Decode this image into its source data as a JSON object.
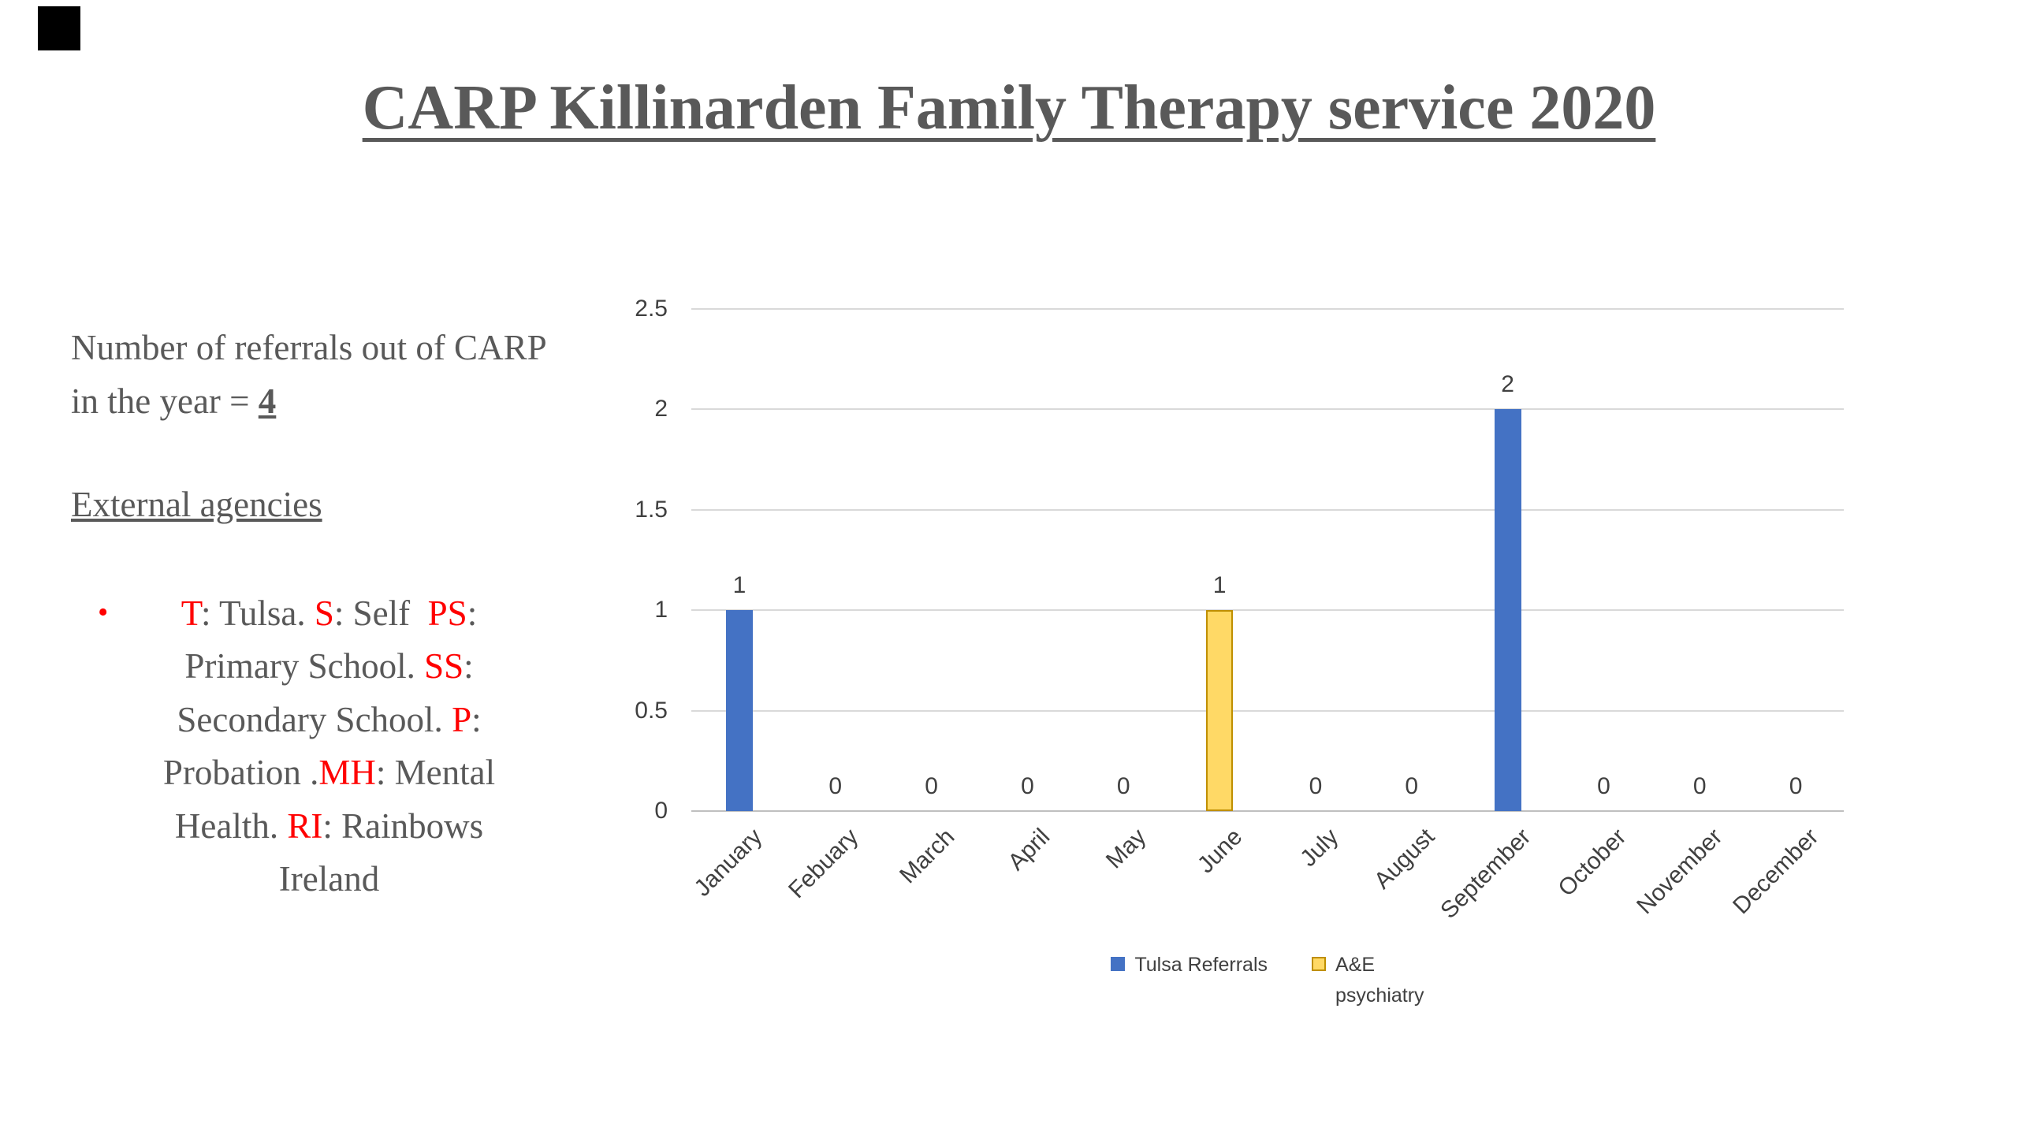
{
  "slide": {
    "title": "CARP Killinarden Family Therapy service 2020",
    "referrals": {
      "text_before_value": "Number of referrals out of CARP in the year = ",
      "value": "4"
    },
    "external_agencies_heading": "External agencies",
    "bullet": {
      "marker": "•",
      "lines": [
        [
          {
            "text": "T",
            "red": true
          },
          {
            "text": ": Tulsa. ",
            "red": false
          },
          {
            "text": "S",
            "red": true
          },
          {
            "text": ": Self  ",
            "red": false
          },
          {
            "text": "PS",
            "red": true
          },
          {
            "text": ":",
            "red": false
          }
        ],
        [
          {
            "text": "Primary School. ",
            "red": false
          },
          {
            "text": "SS",
            "red": true
          },
          {
            "text": ":",
            "red": false
          }
        ],
        [
          {
            "text": "Secondary School. ",
            "red": false
          },
          {
            "text": "P",
            "red": true
          },
          {
            "text": ":",
            "red": false
          }
        ],
        [
          {
            "text": "Probation .",
            "red": false
          },
          {
            "text": "MH",
            "red": true
          },
          {
            "text": ": Mental",
            "red": false
          }
        ],
        [
          {
            "text": "Health. ",
            "red": false
          },
          {
            "text": "RI",
            "red": true
          },
          {
            "text": ": Rainbows",
            "red": false
          }
        ],
        [
          {
            "text": "Ireland",
            "red": false
          }
        ]
      ]
    }
  },
  "colors": {
    "body_gray": "#595959",
    "chart_text": "#404040",
    "red": "#FF0000",
    "blue_series": "#4472C4",
    "yellow_fill": "#FFD966",
    "yellow_border": "#BF8F00",
    "gridline": "#D9D9D9",
    "axis": "#BFBFBF"
  },
  "chart_data": {
    "type": "bar",
    "title": "",
    "xlabel": "",
    "ylabel": "",
    "categories": [
      "January",
      "Febuary",
      "March",
      "April",
      "May",
      "June",
      "July",
      "August",
      "September",
      "October",
      "November",
      "December"
    ],
    "series": [
      {
        "name": "Tulsa Referrals",
        "color": "#4472C4",
        "values": [
          1,
          0,
          0,
          0,
          0,
          0,
          0,
          0,
          2,
          0,
          0,
          0
        ]
      },
      {
        "name": "A&E psychiatry",
        "color": "#FFD966",
        "border_color": "#BF8F00",
        "values": [
          0,
          0,
          0,
          0,
          0,
          1,
          0,
          0,
          0,
          0,
          0,
          0
        ]
      }
    ],
    "data_labels": [
      "1",
      "0",
      "0",
      "0",
      "0",
      "1",
      "0",
      "0",
      "2",
      "0",
      "0",
      "0"
    ],
    "ylim": [
      0,
      2.5
    ],
    "y_ticks": [
      0,
      0.5,
      1,
      1.5,
      2,
      2.5
    ],
    "y_tick_labels": [
      "0",
      "0.5",
      "1",
      "1.5",
      "2",
      "2.5"
    ],
    "grid": true,
    "legend_position": "bottom",
    "legend": [
      {
        "lines": [
          "Tulsa Referrals"
        ],
        "color": "#4472C4"
      },
      {
        "lines": [
          "A&E",
          "psychiatry"
        ],
        "color": "#FFD966",
        "border_color": "#BF8F00"
      }
    ]
  }
}
